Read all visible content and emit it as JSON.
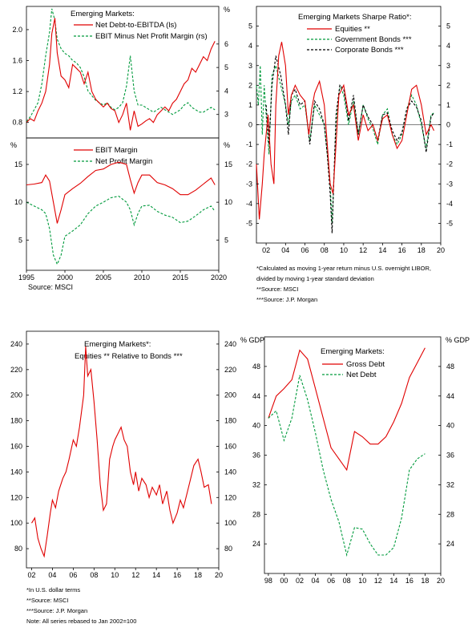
{
  "colors": {
    "red": "#e00000",
    "green": "#009a3c",
    "black": "#000000"
  },
  "panel1": {
    "title": "Emerging Markets:",
    "unit_right": "%",
    "source": "Source: MSCI",
    "chart_data": [
      {
        "type": "line",
        "y_axis": "left",
        "ylim": [
          0.6,
          2.3
        ],
        "yticks": [
          0.8,
          1.2,
          1.6,
          2.0
        ],
        "x_range": [
          1995,
          2020
        ],
        "series": [
          {
            "name": "Net Debt-to-EBITDA (ls)",
            "color": "red",
            "dash": "solid",
            "x": [
              1995,
              1995.5,
              1996,
              1996.5,
              1997,
              1997.5,
              1998,
              1998.3,
              1998.7,
              1999,
              1999.5,
              2000,
              2000.5,
              2001,
              2001.5,
              2002,
              2002.5,
              2003,
              2003.5,
              2004,
              2004.5,
              2005,
              2005.5,
              2006,
              2006.5,
              2007,
              2007.5,
              2008,
              2008.5,
              2009,
              2009.5,
              2010,
              2010.5,
              2011,
              2011.5,
              2012,
              2012.5,
              2013,
              2013.5,
              2014,
              2014.5,
              2015,
              2015.5,
              2016,
              2016.5,
              2017,
              2017.5,
              2018,
              2018.5,
              2019,
              2019.5
            ],
            "values": [
              0.8,
              0.85,
              0.82,
              0.95,
              1.05,
              1.2,
              1.55,
              1.95,
              2.15,
              1.7,
              1.4,
              1.35,
              1.25,
              1.55,
              1.5,
              1.45,
              1.3,
              1.45,
              1.2,
              1.1,
              1.05,
              1.0,
              1.05,
              0.98,
              0.95,
              0.8,
              0.9,
              1.05,
              0.7,
              0.95,
              0.75,
              0.78,
              0.82,
              0.85,
              0.8,
              0.9,
              0.95,
              1.0,
              0.95,
              1.05,
              1.1,
              1.2,
              1.3,
              1.35,
              1.5,
              1.45,
              1.55,
              1.65,
              1.6,
              1.75,
              1.85
            ]
          },
          {
            "name": "EBIT Minus Net Profit Margin (rs)",
            "color": "green",
            "dash": "dashed",
            "x": [
              1995,
              1995.5,
              1996,
              1996.5,
              1997,
              1997.5,
              1998,
              1998.3,
              1998.7,
              1999,
              1999.5,
              2000,
              2000.5,
              2001,
              2001.5,
              2002,
              2002.5,
              2003,
              2003.5,
              2004,
              2004.5,
              2005,
              2005.5,
              2006,
              2006.5,
              2007,
              2007.5,
              2008,
              2008.5,
              2009,
              2009.5,
              2010,
              2010.5,
              2011,
              2011.5,
              2012,
              2012.5,
              2013,
              2013.5,
              2014,
              2014.5,
              2015,
              2015.5,
              2016,
              2016.5,
              2017,
              2017.5,
              2018,
              2018.5,
              2019,
              2019.5
            ],
            "values": [
              2.7,
              2.9,
              3.2,
              3.5,
              4.3,
              5.5,
              6.5,
              7.5,
              7.0,
              6.2,
              5.8,
              5.6,
              5.5,
              5.3,
              5.2,
              5.0,
              4.6,
              4.0,
              3.8,
              3.6,
              3.5,
              3.4,
              3.5,
              3.3,
              3.2,
              3.3,
              3.5,
              4.2,
              5.5,
              4.0,
              3.4,
              3.4,
              3.3,
              3.2,
              3.1,
              3.2,
              3.3,
              3.2,
              3.1,
              3.0,
              3.1,
              3.2,
              3.4,
              3.5,
              3.3,
              3.2,
              3.1,
              3.1,
              3.2,
              3.3,
              3.2
            ]
          }
        ]
      },
      {
        "y_axis": "right",
        "ylim": [
          2.0,
          7.6
        ],
        "yticks": [
          3,
          4,
          5,
          6
        ]
      }
    ]
  },
  "panel2": {
    "unit_left": "%",
    "unit_right": "%",
    "x_ticks": [
      "1995",
      "2000",
      "2005",
      "2010",
      "2015",
      "2020"
    ],
    "chart_data": {
      "type": "line",
      "ylim": [
        1.0,
        18.5
      ],
      "yticks_left": [
        5,
        10,
        15
      ],
      "yticks_right": [
        5,
        10,
        15
      ],
      "x_range": [
        1995,
        2020
      ],
      "series": [
        {
          "name": "EBIT Margin",
          "color": "red",
          "dash": "solid",
          "x": [
            1995,
            1996,
            1997,
            1997.5,
            1998,
            1998.5,
            1999,
            1999.5,
            2000,
            2001,
            2002,
            2003,
            2004,
            2005,
            2006,
            2007,
            2008,
            2008.5,
            2009,
            2009.5,
            2010,
            2011,
            2012,
            2013,
            2014,
            2015,
            2016,
            2017,
            2018,
            2019,
            2019.5
          ],
          "values": [
            12.3,
            12.4,
            12.6,
            13.6,
            12.8,
            10.0,
            7.2,
            9.0,
            11.0,
            11.8,
            12.5,
            13.4,
            14.2,
            14.4,
            15.0,
            15.3,
            15.0,
            13.0,
            11.2,
            12.6,
            13.6,
            13.6,
            12.6,
            12.3,
            11.8,
            11.0,
            11.0,
            11.6,
            12.4,
            13.2,
            12.3
          ]
        },
        {
          "name": "Net Profit Margin",
          "color": "green",
          "dash": "dashed",
          "x": [
            1995,
            1996,
            1997,
            1997.5,
            1998,
            1998.5,
            1999,
            1999.5,
            2000,
            2001,
            2002,
            2003,
            2004,
            2005,
            2006,
            2007,
            2008,
            2008.5,
            2009,
            2009.5,
            2010,
            2011,
            2012,
            2013,
            2014,
            2015,
            2016,
            2017,
            2018,
            2019,
            2019.5
          ],
          "values": [
            10.0,
            9.5,
            9.0,
            8.5,
            6.5,
            3.0,
            1.8,
            3.0,
            5.5,
            6.2,
            7.0,
            8.5,
            9.5,
            10.0,
            10.6,
            10.8,
            10.0,
            9.0,
            7.0,
            8.5,
            9.5,
            9.6,
            8.8,
            8.3,
            8.0,
            7.3,
            7.5,
            8.2,
            9.0,
            9.5,
            8.8
          ]
        }
      ]
    }
  },
  "panel3": {
    "title": "Emerging Markets Sharpe Ratio*:",
    "x_ticks": [
      "02",
      "04",
      "06",
      "08",
      "10",
      "12",
      "14",
      "16",
      "18",
      "20"
    ],
    "notes": [
      "*Calculated as moving 1-year return minus U.S. overnight LIBOR,",
      "divided by moving 1-year standard deviation",
      "**Source: MSCI",
      "***Source: J.P. Morgan"
    ],
    "chart_data": {
      "type": "line",
      "ylim": [
        -6,
        6
      ],
      "yticks": [
        -5,
        -4,
        -3,
        -2,
        -1,
        0,
        1,
        2,
        3,
        4,
        5
      ],
      "x_range": [
        2001,
        2020
      ],
      "series": [
        {
          "name": "Equities **",
          "color": "red",
          "dash": "solid",
          "x": [
            2001,
            2001.3,
            2001.6,
            2001.8,
            2002,
            2002.2,
            2002.5,
            2002.8,
            2003,
            2003.3,
            2003.6,
            2004,
            2004.3,
            2004.6,
            2005,
            2005.5,
            2006,
            2006.4,
            2006.7,
            2007,
            2007.5,
            2008,
            2008.3,
            2008.6,
            2008.9,
            2009.2,
            2009.5,
            2010,
            2010.5,
            2011,
            2011.5,
            2012,
            2012.5,
            2013,
            2013.5,
            2014,
            2014.5,
            2015,
            2015.5,
            2016,
            2016.5,
            2017,
            2017.5,
            2018,
            2018.5,
            2019,
            2019.3
          ],
          "values": [
            -2,
            -4.8,
            -3,
            -1.5,
            -0.5,
            0.5,
            -2.0,
            -3.0,
            1.0,
            3.5,
            4.2,
            3.0,
            0.5,
            1.5,
            2.0,
            1.5,
            1.2,
            -0.5,
            0.8,
            1.6,
            2.2,
            1.0,
            -1.0,
            -3.0,
            -3.5,
            -1.0,
            1.5,
            2.0,
            0.5,
            1.0,
            -0.8,
            0.5,
            -0.3,
            0.0,
            -0.8,
            0.3,
            0.5,
            -0.5,
            -1.2,
            -0.8,
            0.5,
            1.8,
            2.0,
            1.0,
            -0.5,
            0.0,
            -0.3
          ]
        },
        {
          "name": "Government Bonds ***",
          "color": "green",
          "dash": "dashed",
          "x": [
            2001,
            2001.2,
            2001.4,
            2001.6,
            2001.8,
            2002,
            2002.3,
            2002.6,
            2003,
            2003.5,
            2004,
            2004.3,
            2004.6,
            2005,
            2005.5,
            2006,
            2006.5,
            2007,
            2007.5,
            2008,
            2008.3,
            2008.6,
            2008.8,
            2009.2,
            2009.6,
            2010,
            2010.5,
            2011,
            2011.5,
            2012,
            2012.5,
            2013,
            2013.5,
            2014,
            2014.5,
            2015,
            2015.5,
            2016,
            2016.5,
            2017,
            2017.5,
            2018,
            2018.5,
            2019,
            2019.3
          ],
          "values": [
            2.0,
            1.0,
            3.0,
            -0.5,
            2.0,
            0.5,
            -1.5,
            2.5,
            3.0,
            2.0,
            1.0,
            0.0,
            1.2,
            1.5,
            0.8,
            1.0,
            -0.8,
            1.0,
            0.5,
            0.0,
            -1.5,
            -3.0,
            -5.0,
            0.0,
            2.0,
            1.5,
            0.0,
            1.2,
            -0.5,
            1.0,
            0.3,
            -0.2,
            -1.0,
            0.5,
            0.8,
            -0.5,
            -1.0,
            -0.5,
            0.8,
            1.5,
            1.0,
            0.0,
            -1.2,
            0.5,
            0.6
          ]
        },
        {
          "name": "Corporate Bonds ***",
          "color": "black",
          "dash": "dashed",
          "x": [
            2002,
            2002.3,
            2002.6,
            2003,
            2003.5,
            2004,
            2004.3,
            2004.6,
            2005,
            2005.5,
            2006,
            2006.5,
            2007,
            2007.5,
            2008,
            2008.3,
            2008.6,
            2008.8,
            2009.2,
            2009.6,
            2010,
            2010.5,
            2011,
            2011.5,
            2012,
            2012.5,
            2013,
            2013.5,
            2014,
            2014.5,
            2015,
            2015.5,
            2016,
            2016.5,
            2017,
            2017.5,
            2018,
            2018.5,
            2019,
            2019.3
          ],
          "values": [
            1.0,
            -1.0,
            2.0,
            3.5,
            2.5,
            1.0,
            -0.5,
            1.5,
            1.8,
            1.0,
            1.2,
            -1.0,
            1.2,
            0.8,
            0.0,
            -1.5,
            -3.5,
            -5.5,
            0.5,
            2.0,
            1.8,
            0.2,
            1.5,
            -0.5,
            1.0,
            0.4,
            0.0,
            -0.8,
            0.5,
            0.6,
            -0.3,
            -0.8,
            -0.4,
            0.8,
            1.2,
            0.9,
            0.2,
            -1.4,
            0.4,
            0.6
          ]
        }
      ]
    }
  },
  "panel4": {
    "title": "Emerging Markets*:",
    "subtitle": "Equities ** Relative to Bonds ***",
    "x_ticks": [
      "02",
      "04",
      "06",
      "08",
      "10",
      "12",
      "14",
      "16",
      "18",
      "20"
    ],
    "notes": [
      "*In U.S. dollar terms",
      "**Source: MSCI",
      "***Source: J.P. Morgan",
      "Note: All series rebased to Jan 2002=100"
    ],
    "chart_data": {
      "type": "line",
      "ylim": [
        65,
        250
      ],
      "yticks": [
        80,
        100,
        120,
        140,
        160,
        180,
        200,
        220,
        240
      ],
      "x_range": [
        2001.5,
        2020
      ],
      "series": [
        {
          "name": "",
          "color": "red",
          "dash": "solid",
          "x": [
            2002,
            2002.3,
            2002.6,
            2002.9,
            2003.2,
            2003.5,
            2003.8,
            2004,
            2004.3,
            2004.6,
            2005,
            2005.3,
            2005.6,
            2006,
            2006.3,
            2006.6,
            2007,
            2007.2,
            2007.4,
            2007.7,
            2008,
            2008.3,
            2008.6,
            2008.9,
            2009.2,
            2009.5,
            2009.8,
            2010,
            2010.3,
            2010.6,
            2010.9,
            2011.2,
            2011.5,
            2011.8,
            2012,
            2012.3,
            2012.6,
            2013,
            2013.3,
            2013.6,
            2014,
            2014.3,
            2014.6,
            2015,
            2015.3,
            2015.6,
            2016,
            2016.3,
            2016.6,
            2017,
            2017.3,
            2017.6,
            2018,
            2018.3,
            2018.6,
            2019,
            2019.3
          ],
          "values": [
            100,
            104,
            88,
            80,
            74,
            90,
            108,
            118,
            112,
            125,
            135,
            140,
            150,
            165,
            160,
            175,
            200,
            238,
            215,
            220,
            195,
            165,
            130,
            110,
            115,
            150,
            160,
            165,
            170,
            175,
            165,
            160,
            140,
            130,
            140,
            125,
            135,
            130,
            120,
            128,
            122,
            130,
            115,
            125,
            110,
            100,
            108,
            118,
            112,
            125,
            135,
            145,
            150,
            140,
            128,
            130,
            115
          ]
        }
      ]
    }
  },
  "panel5": {
    "title": "Emerging Markets:",
    "unit_left": "% GDP",
    "unit_right": "% GDP",
    "x_ticks": [
      "98",
      "00",
      "02",
      "04",
      "06",
      "08",
      "10",
      "12",
      "14",
      "16",
      "18",
      "20"
    ],
    "chart_data": {
      "type": "line",
      "ylim": [
        20,
        52
      ],
      "yticks": [
        24,
        28,
        32,
        36,
        40,
        44,
        48
      ],
      "x_range": [
        1997.5,
        2020
      ],
      "series": [
        {
          "name": "Gross Debt",
          "color": "red",
          "dash": "solid",
          "x": [
            1998,
            1999,
            2000,
            2001,
            2002,
            2003,
            2004,
            2005,
            2006,
            2007,
            2008,
            2009,
            2010,
            2011,
            2012,
            2013,
            2014,
            2015,
            2016,
            2017,
            2018
          ],
          "values": [
            41.0,
            44.0,
            45.0,
            46.2,
            50.2,
            49.0,
            45.0,
            41.0,
            37.0,
            35.5,
            34.0,
            39.2,
            38.5,
            37.5,
            37.5,
            38.5,
            40.5,
            43.0,
            46.5,
            48.5,
            50.5
          ]
        },
        {
          "name": "Net Debt",
          "color": "green",
          "dash": "dashed",
          "x": [
            1998,
            1999,
            2000,
            2001,
            2002,
            2003,
            2004,
            2005,
            2006,
            2007,
            2008,
            2009,
            2010,
            2011,
            2012,
            2013,
            2014,
            2015,
            2016,
            2017,
            2018
          ],
          "values": [
            41.0,
            42.0,
            38.0,
            41.0,
            46.8,
            43.5,
            39.0,
            34.0,
            30.0,
            27.0,
            22.5,
            26.2,
            26.0,
            24.0,
            22.5,
            22.5,
            23.5,
            27.5,
            34.0,
            35.5,
            36.2
          ]
        }
      ]
    }
  }
}
